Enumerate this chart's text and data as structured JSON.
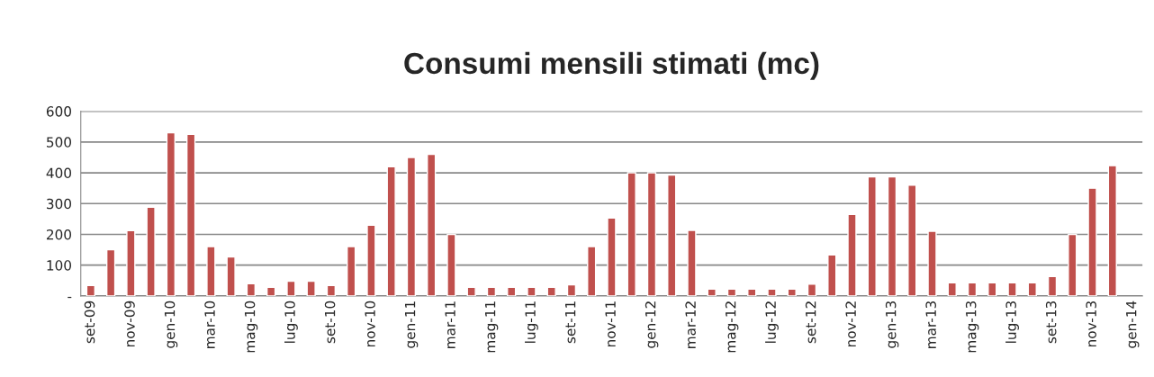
{
  "chart_data": {
    "type": "bar",
    "title": "Consumi mensili stimati (mc)",
    "categories": [
      "set-09",
      null,
      "nov-09",
      null,
      "gen-10",
      null,
      "mar-10",
      null,
      "mag-10",
      null,
      "lug-10",
      null,
      "set-10",
      null,
      "nov-10",
      null,
      "gen-11",
      null,
      "mar-11",
      null,
      "mag-11",
      null,
      "lug-11",
      null,
      "set-11",
      null,
      "nov-11",
      null,
      "gen-12",
      null,
      "mar-12",
      null,
      "mag-12",
      null,
      "lug-12",
      null,
      "set-12",
      null,
      "nov-12",
      null,
      "gen-13",
      null,
      "mar-13",
      null,
      "mag-13",
      null,
      "lug-13",
      null,
      "set-13",
      null,
      "nov-13",
      null,
      "gen-14"
    ],
    "values": [
      34,
      150,
      212,
      288,
      530,
      525,
      160,
      127,
      40,
      28,
      48,
      48,
      34,
      160,
      230,
      420,
      450,
      460,
      200,
      28,
      28,
      28,
      28,
      28,
      36,
      160,
      253,
      400,
      400,
      393,
      213,
      22,
      22,
      22,
      22,
      22,
      38,
      133,
      265,
      387,
      387,
      360,
      210,
      43,
      43,
      43,
      43,
      43,
      63,
      200,
      350,
      423,
      null
    ],
    "color": "#c0504d",
    "ylim": [
      0,
      600
    ],
    "yticks": [
      {
        "value": 0,
        "label": "-"
      },
      100,
      200,
      300,
      400,
      500,
      600
    ],
    "grid": "y",
    "legend": false
  }
}
